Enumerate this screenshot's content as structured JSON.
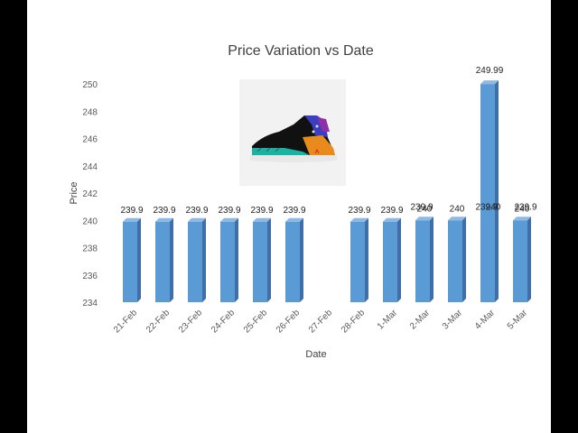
{
  "chart_data": {
    "type": "bar",
    "title": "Price Variation vs Date",
    "xlabel": "Date",
    "ylabel": "Price",
    "categories": [
      "21-Feb",
      "22-Feb",
      "23-Feb",
      "24-Feb",
      "25-Feb",
      "26-Feb",
      "27-Feb",
      "28-Feb",
      "1-Mar",
      "2-Mar",
      "3-Mar",
      "4-Mar",
      "5-Mar"
    ],
    "values": [
      239.9,
      239.9,
      239.9,
      239.9,
      239.9,
      239.9,
      null,
      239.9,
      239.9,
      240,
      240,
      249.99,
      240
    ],
    "data_labels": [
      "239.9",
      "239.9",
      "239.9",
      "239.9",
      "239.9",
      "239.9",
      "",
      "239.9",
      "239.9",
      "240",
      "240",
      "249.99",
      "240"
    ],
    "overlap_labels": [
      {
        "category": "2-Mar",
        "label": "239.9"
      },
      {
        "category": "4-Mar",
        "label": "240"
      },
      {
        "category": "4-Mar",
        "label": "239.9"
      },
      {
        "category": "5-Mar",
        "label": "239.9"
      }
    ],
    "ylim": [
      234,
      251
    ],
    "yticks": [
      234,
      236,
      238,
      240,
      242,
      244,
      246,
      248,
      250
    ],
    "grid": false,
    "legend": "none",
    "bar_color": "#5B9BD5",
    "bar_side_color": "#3F6FA6",
    "bar_top_color": "#8DB9E4",
    "image": "sneaker-product-photo"
  }
}
